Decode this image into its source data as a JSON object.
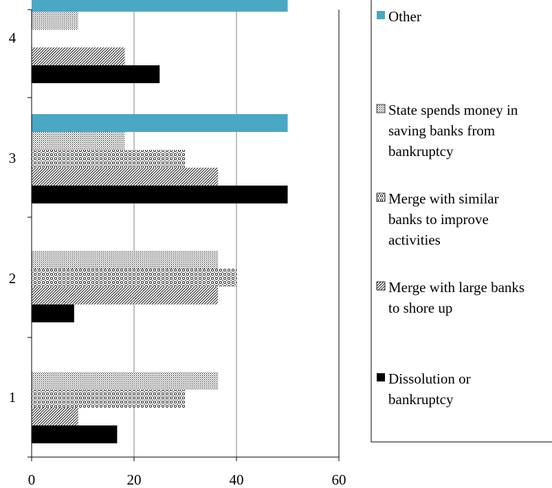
{
  "chart_data": {
    "type": "bar",
    "orientation": "horizontal",
    "categories": [
      "1",
      "2",
      "3",
      "4"
    ],
    "series": [
      {
        "name": "Dissolution or bankruptcy",
        "legend_lines": [
          "Dissolution or",
          "bankruptcy"
        ],
        "pattern": "solid-black",
        "values": [
          16.7,
          8.3,
          50,
          25
        ]
      },
      {
        "name": "Merge with large banks to shore up",
        "legend_lines": [
          "Merge with large banks",
          "to shore up"
        ],
        "pattern": "diag-hatch",
        "values": [
          9.1,
          36.4,
          36.4,
          18.2
        ]
      },
      {
        "name": "Merge with similar banks to improve activities",
        "legend_lines": [
          "Merge with similar",
          "banks to improve",
          "activities"
        ],
        "pattern": "circles",
        "values": [
          30,
          40,
          30,
          null
        ]
      },
      {
        "name": "State spends money in saving banks from bankruptcy",
        "legend_lines": [
          "State spends money in",
          "saving banks from",
          "bankruptcy"
        ],
        "pattern": "dots",
        "values": [
          36.4,
          36.4,
          18.2,
          9.1
        ]
      },
      {
        "name": "Other",
        "legend_lines": [
          "Other"
        ],
        "pattern": "solid-teal",
        "values": [
          null,
          null,
          50,
          50
        ]
      }
    ],
    "xlim": [
      0,
      60
    ],
    "xticks": [
      "0",
      "20",
      "40",
      "60"
    ],
    "grid": "vertical",
    "legend_position": "right",
    "colors": {
      "dark": "#000000",
      "teal": "#4aa8c4",
      "grid": "#808080"
    },
    "title": "",
    "xlabel": "",
    "ylabel": ""
  }
}
